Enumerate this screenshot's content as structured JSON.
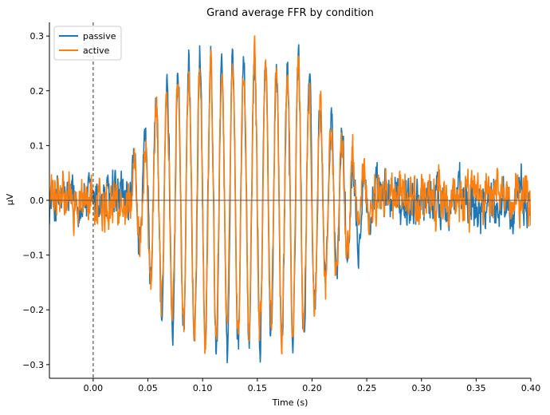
{
  "chart_data": {
    "type": "line",
    "title": "Grand average FFR by condition",
    "xlabel": "Time (s)",
    "ylabel": "µV",
    "xlim": [
      -0.04,
      0.4
    ],
    "ylim": [
      -0.325,
      0.325
    ],
    "xticks": [
      0.0,
      0.05,
      0.1,
      0.15,
      0.2,
      0.25,
      0.3,
      0.35,
      0.4
    ],
    "xtick_labels": [
      "0.00",
      "0.05",
      "0.10",
      "0.15",
      "0.20",
      "0.25",
      "0.30",
      "0.35",
      "0.40"
    ],
    "yticks": [
      -0.3,
      -0.2,
      -0.1,
      0.0,
      0.1,
      0.2,
      0.3
    ],
    "ytick_labels": [
      "−0.3",
      "−0.2",
      "−0.1",
      "0.0",
      "0.1",
      "0.2",
      "0.3"
    ],
    "grid": false,
    "legend_position": "top-left",
    "zero_line": 0,
    "vline": 0,
    "series": [
      {
        "name": "passive",
        "color": "#1f77b4",
        "envelope": [
          [
            -0.04,
            0.04
          ],
          [
            0.0,
            0.04
          ],
          [
            0.03,
            0.05
          ],
          [
            0.045,
            0.1
          ],
          [
            0.055,
            0.19
          ],
          [
            0.06,
            0.22
          ],
          [
            0.075,
            0.26
          ],
          [
            0.1,
            0.31
          ],
          [
            0.15,
            0.3
          ],
          [
            0.19,
            0.3
          ],
          [
            0.2,
            0.24
          ],
          [
            0.215,
            0.18
          ],
          [
            0.225,
            0.16
          ],
          [
            0.235,
            0.11
          ],
          [
            0.245,
            0.07
          ],
          [
            0.255,
            0.05
          ],
          [
            0.4,
            0.05
          ]
        ]
      },
      {
        "name": "active",
        "color": "#ff7f0e",
        "envelope": [
          [
            -0.04,
            0.035
          ],
          [
            0.0,
            0.035
          ],
          [
            0.03,
            0.045
          ],
          [
            0.045,
            0.09
          ],
          [
            0.055,
            0.18
          ],
          [
            0.06,
            0.21
          ],
          [
            0.075,
            0.26
          ],
          [
            0.1,
            0.29
          ],
          [
            0.15,
            0.29
          ],
          [
            0.19,
            0.28
          ],
          [
            0.2,
            0.23
          ],
          [
            0.215,
            0.17
          ],
          [
            0.225,
            0.15
          ],
          [
            0.235,
            0.1
          ],
          [
            0.245,
            0.065
          ],
          [
            0.255,
            0.045
          ],
          [
            0.4,
            0.045
          ]
        ]
      }
    ]
  }
}
